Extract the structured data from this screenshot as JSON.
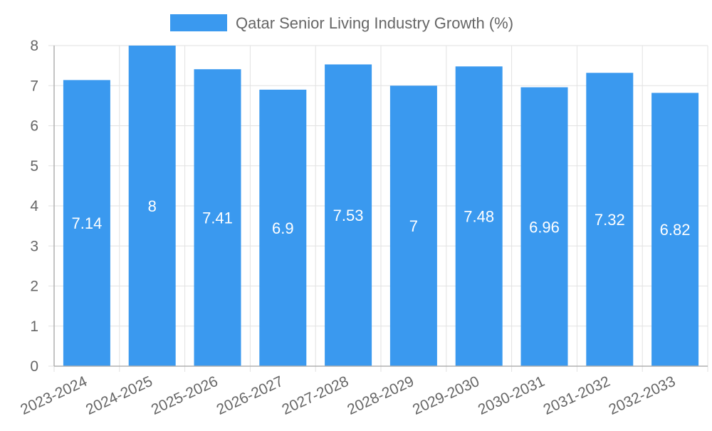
{
  "chart_data": {
    "type": "bar",
    "title": "",
    "xlabel": "",
    "ylabel": "",
    "ylim": [
      0,
      8
    ],
    "y_ticks": [
      "0",
      "1",
      "2",
      "3",
      "4",
      "5",
      "6",
      "7",
      "8"
    ],
    "grid": true,
    "legend_position": "top-center",
    "categories": [
      "2023-2024",
      "2024-2025",
      "2025-2026",
      "2026-2027",
      "2027-2028",
      "2028-2029",
      "2029-2030",
      "2030-2031",
      "2031-2032",
      "2032-2033"
    ],
    "series": [
      {
        "name": "Qatar Senior Living Industry Growth (%)",
        "color": "#3a99ef",
        "values": [
          7.14,
          8,
          7.41,
          6.9,
          7.53,
          7,
          7.48,
          6.96,
          7.32,
          6.82
        ],
        "labels": [
          "7.14",
          "8",
          "7.41",
          "6.9",
          "7.53",
          "7",
          "7.48",
          "6.96",
          "7.32",
          "6.82"
        ]
      }
    ]
  },
  "colors": {
    "bar": "#3a99ef",
    "grid": "#e2e2e2",
    "axis": "#b0b0b0",
    "tick_text": "#666666",
    "legend_text": "#666666",
    "data_label": "#ffffff"
  }
}
